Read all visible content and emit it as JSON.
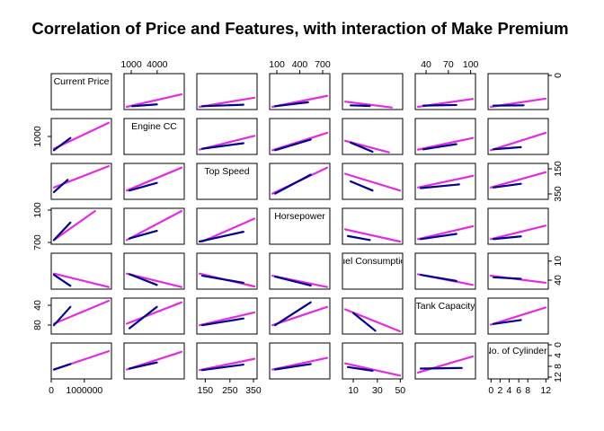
{
  "chart_data": {
    "type": "scatter-matrix",
    "title": "Correlation of Price and Features, with interaction of Make Premium",
    "variables": [
      "Current Price",
      "Engine CC",
      "Top Speed",
      "Horsepower",
      "Fuel Consumption",
      "Tank Capacity",
      "No. of Cylinders"
    ],
    "colors": {
      "base": "#e22be2",
      "premium": "#00008b"
    },
    "axis_ticks": {
      "top": [
        {
          "column": 1,
          "labels": [
            "1000",
            "4000"
          ]
        },
        {
          "column": 3,
          "labels": [
            "100",
            "400",
            "700"
          ]
        },
        {
          "column": 5,
          "labels": [
            "40",
            "70",
            "100"
          ]
        }
      ],
      "bottom": [
        {
          "column": 0,
          "labels": [
            "0",
            "1000000"
          ]
        },
        {
          "column": 2,
          "labels": [
            "150",
            "250",
            "350"
          ]
        },
        {
          "column": 4,
          "labels": [
            "10",
            "30",
            "50"
          ]
        },
        {
          "column": 6,
          "labels": [
            "0",
            "2",
            "4",
            "6",
            "8",
            "12"
          ]
        }
      ],
      "left": [
        {
          "row": 1,
          "labels": [
            "1000"
          ]
        },
        {
          "row": 3,
          "labels": [
            "100",
            "700"
          ]
        },
        {
          "row": 5,
          "labels": [
            "40",
            "80"
          ]
        }
      ],
      "right": [
        {
          "row": 0,
          "labels": [
            "0"
          ]
        },
        {
          "row": 2,
          "labels": [
            "150",
            "350"
          ]
        },
        {
          "row": 4,
          "labels": [
            "10",
            "40"
          ]
        },
        {
          "row": 6,
          "labels": [
            "0",
            "4",
            "8",
            "12"
          ]
        }
      ]
    },
    "lines": [
      {
        "row": 0,
        "col": 1,
        "base": [
          0.0,
          0.0,
          1.0,
          0.41
        ],
        "premium": [
          0.1,
          0.02,
          0.55,
          0.08
        ]
      },
      {
        "row": 0,
        "col": 2,
        "base": [
          0.0,
          0.0,
          1.0,
          0.3
        ],
        "premium": [
          0.05,
          0.02,
          0.8,
          0.07
        ]
      },
      {
        "row": 0,
        "col": 3,
        "base": [
          0.0,
          0.0,
          1.0,
          0.36
        ],
        "premium": [
          0.05,
          0.02,
          0.65,
          0.15
        ]
      },
      {
        "row": 0,
        "col": 4,
        "base": [
          0.0,
          0.17,
          0.85,
          -0.02
        ],
        "premium": [
          0.1,
          0.05,
          0.45,
          0.03
        ]
      },
      {
        "row": 0,
        "col": 5,
        "base": [
          0.0,
          0.0,
          1.0,
          0.26
        ],
        "premium": [
          0.1,
          0.04,
          0.7,
          0.06
        ]
      },
      {
        "row": 0,
        "col": 6,
        "base": [
          0.0,
          0.0,
          1.0,
          0.27
        ],
        "premium": [
          0.05,
          0.04,
          0.6,
          0.05
        ]
      },
      {
        "row": 1,
        "col": 0,
        "base": [
          0.0,
          0.1,
          1.0,
          0.95
        ],
        "premium": [
          0.0,
          0.05,
          0.3,
          0.45
        ]
      },
      {
        "row": 1,
        "col": 2,
        "base": [
          0.0,
          0.07,
          1.0,
          0.52
        ],
        "premium": [
          0.05,
          0.1,
          0.8,
          0.28
        ]
      },
      {
        "row": 1,
        "col": 3,
        "base": [
          0.0,
          0.05,
          1.0,
          0.62
        ],
        "premium": [
          0.05,
          0.05,
          0.7,
          0.4
        ]
      },
      {
        "row": 1,
        "col": 4,
        "base": [
          0.0,
          0.36,
          0.8,
          -0.02
        ],
        "premium": [
          0.1,
          0.3,
          0.5,
          0.0
        ]
      },
      {
        "row": 1,
        "col": 5,
        "base": [
          0.0,
          0.07,
          1.0,
          0.45
        ],
        "premium": [
          0.1,
          0.08,
          0.7,
          0.25
        ]
      },
      {
        "row": 1,
        "col": 6,
        "base": [
          0.0,
          0.05,
          1.0,
          0.62
        ],
        "premium": [
          0.05,
          0.08,
          0.55,
          0.15
        ]
      },
      {
        "row": 2,
        "col": 0,
        "base": [
          0.0,
          0.3,
          1.0,
          1.0
        ],
        "premium": [
          0.0,
          0.15,
          0.25,
          0.55
        ]
      },
      {
        "row": 2,
        "col": 1,
        "base": [
          0.0,
          0.2,
          1.0,
          0.95
        ],
        "premium": [
          0.05,
          0.2,
          0.55,
          0.45
        ]
      },
      {
        "row": 2,
        "col": 3,
        "base": [
          0.0,
          0.1,
          1.0,
          0.95
        ],
        "premium": [
          0.05,
          0.1,
          0.7,
          0.72
        ]
      },
      {
        "row": 2,
        "col": 4,
        "base": [
          0.0,
          0.75,
          1.0,
          0.2
        ],
        "premium": [
          0.1,
          0.5,
          0.5,
          0.2
        ]
      },
      {
        "row": 2,
        "col": 5,
        "base": [
          0.0,
          0.3,
          1.0,
          0.68
        ],
        "premium": [
          0.05,
          0.28,
          0.75,
          0.4
        ]
      },
      {
        "row": 2,
        "col": 6,
        "base": [
          0.0,
          0.3,
          1.0,
          0.8
        ],
        "premium": [
          0.05,
          0.3,
          0.55,
          0.42
        ]
      },
      {
        "row": 3,
        "col": 0,
        "base": [
          0.0,
          0.05,
          0.75,
          1.0
        ],
        "premium": [
          0.0,
          0.05,
          0.3,
          0.62
        ]
      },
      {
        "row": 3,
        "col": 1,
        "base": [
          0.0,
          0.05,
          1.0,
          1.0
        ],
        "premium": [
          0.05,
          0.1,
          0.55,
          0.35
        ]
      },
      {
        "row": 3,
        "col": 2,
        "base": [
          0.05,
          0.0,
          1.0,
          0.75
        ],
        "premium": [
          0.0,
          0.0,
          0.8,
          0.32
        ]
      },
      {
        "row": 3,
        "col": 4,
        "base": [
          0.0,
          0.4,
          1.0,
          0.0
        ],
        "premium": [
          0.05,
          0.18,
          0.45,
          0.05
        ]
      },
      {
        "row": 3,
        "col": 5,
        "base": [
          0.0,
          0.08,
          1.0,
          0.5
        ],
        "premium": [
          0.05,
          0.08,
          0.7,
          0.25
        ]
      },
      {
        "row": 3,
        "col": 6,
        "base": [
          0.0,
          0.08,
          1.0,
          0.52
        ],
        "premium": [
          0.05,
          0.08,
          0.55,
          0.17
        ]
      },
      {
        "row": 4,
        "col": 0,
        "base": [
          0.0,
          0.42,
          1.0,
          -0.02
        ],
        "premium": [
          0.0,
          0.38,
          0.3,
          0.02
        ]
      },
      {
        "row": 4,
        "col": 1,
        "base": [
          0.0,
          0.42,
          1.0,
          -0.02
        ],
        "premium": [
          0.05,
          0.4,
          0.55,
          0.05
        ]
      },
      {
        "row": 4,
        "col": 2,
        "base": [
          0.0,
          0.42,
          1.0,
          0.0
        ],
        "premium": [
          0.05,
          0.35,
          0.8,
          0.12
        ]
      },
      {
        "row": 4,
        "col": 3,
        "base": [
          0.0,
          0.35,
          1.0,
          -0.02
        ],
        "premium": [
          0.05,
          0.32,
          0.7,
          0.03
        ]
      },
      {
        "row": 4,
        "col": 5,
        "base": [
          0.0,
          0.4,
          1.0,
          0.05
        ],
        "premium": [
          0.05,
          0.38,
          0.7,
          0.18
        ]
      },
      {
        "row": 4,
        "col": 6,
        "base": [
          0.0,
          0.35,
          1.0,
          0.12
        ],
        "premium": [
          0.05,
          0.3,
          0.55,
          0.25
        ]
      },
      {
        "row": 5,
        "col": 0,
        "base": [
          0.0,
          0.25,
          1.0,
          1.0
        ],
        "premium": [
          0.0,
          0.2,
          0.3,
          0.8
        ]
      },
      {
        "row": 5,
        "col": 1,
        "base": [
          0.0,
          0.25,
          1.0,
          0.95
        ],
        "premium": [
          0.05,
          0.1,
          0.55,
          0.8
        ]
      },
      {
        "row": 5,
        "col": 2,
        "base": [
          0.0,
          0.2,
          1.0,
          0.62
        ],
        "premium": [
          0.05,
          0.2,
          0.8,
          0.42
        ]
      },
      {
        "row": 5,
        "col": 3,
        "base": [
          0.0,
          0.2,
          1.0,
          0.8
        ],
        "premium": [
          0.05,
          0.2,
          0.7,
          0.95
        ]
      },
      {
        "row": 5,
        "col": 4,
        "base": [
          0.0,
          0.72,
          1.0,
          0.0
        ],
        "premium": [
          0.15,
          0.6,
          0.55,
          0.02
        ]
      },
      {
        "row": 5,
        "col": 6,
        "base": [
          0.0,
          0.22,
          1.0,
          0.78
        ],
        "premium": [
          0.05,
          0.24,
          0.55,
          0.37
        ]
      },
      {
        "row": 6,
        "col": 0,
        "base": [
          0.0,
          0.22,
          1.0,
          0.82
        ],
        "premium": [
          0.0,
          0.22,
          0.3,
          0.4
        ]
      },
      {
        "row": 6,
        "col": 1,
        "base": [
          0.0,
          0.22,
          1.0,
          0.8
        ],
        "premium": [
          0.05,
          0.25,
          0.55,
          0.45
        ]
      },
      {
        "row": 6,
        "col": 2,
        "base": [
          0.0,
          0.2,
          1.0,
          0.57
        ],
        "premium": [
          0.05,
          0.2,
          0.8,
          0.38
        ]
      },
      {
        "row": 6,
        "col": 3,
        "base": [
          0.0,
          0.22,
          1.0,
          0.6
        ],
        "premium": [
          0.05,
          0.22,
          0.7,
          0.4
        ]
      },
      {
        "row": 6,
        "col": 4,
        "base": [
          0.0,
          0.42,
          1.0,
          0.02
        ],
        "premium": [
          0.05,
          0.3,
          0.5,
          0.18
        ]
      },
      {
        "row": 6,
        "col": 5,
        "base": [
          0.0,
          0.12,
          1.0,
          0.65
        ],
        "premium": [
          0.05,
          0.25,
          0.8,
          0.27
        ]
      }
    ]
  }
}
